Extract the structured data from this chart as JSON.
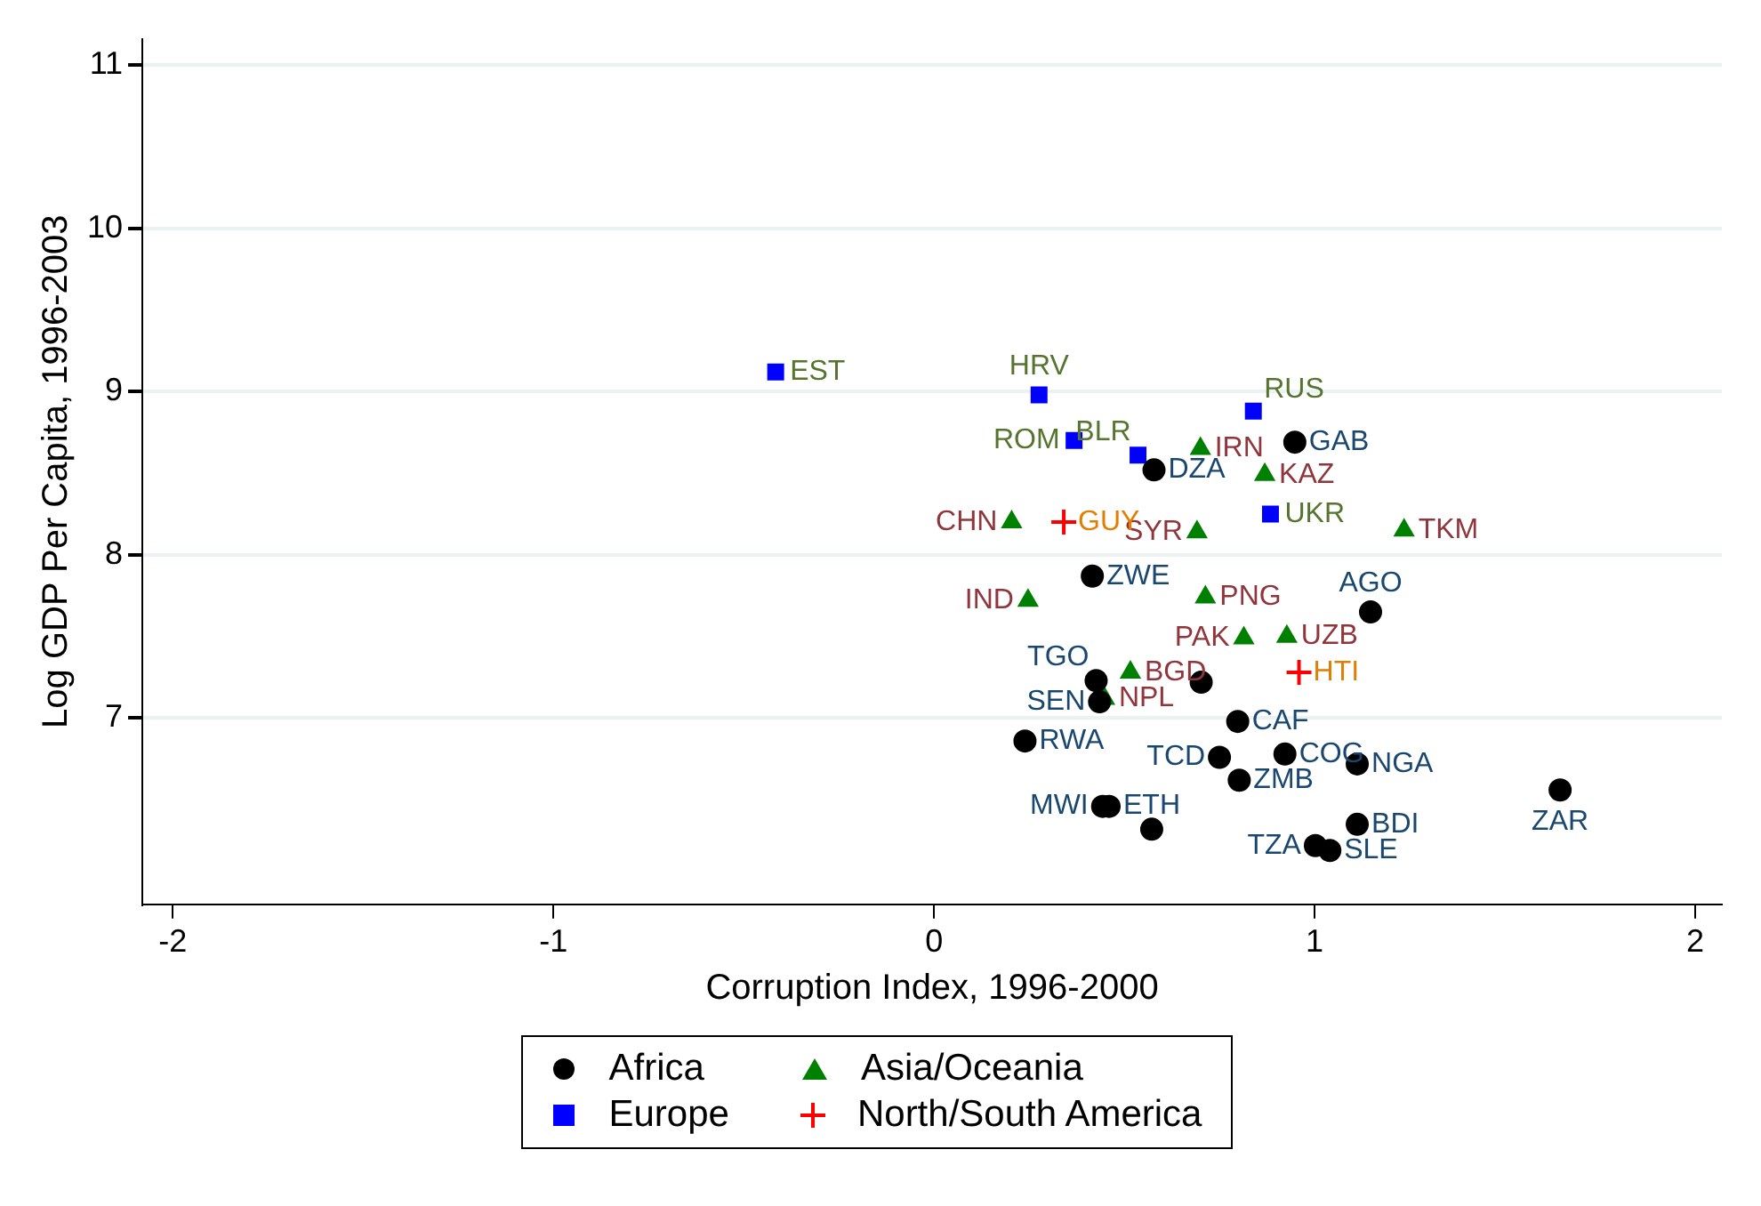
{
  "chart_data": {
    "type": "scatter",
    "xlabel": "Corruption Index, 1996-2000",
    "ylabel": "Log GDP Per Capita, 1996-2003",
    "xlim": [
      -2.08,
      2.07
    ],
    "xticks": [
      -2,
      -1,
      0,
      1,
      2
    ],
    "ylim": [
      5.86,
      11.16
    ],
    "yticks": [
      7,
      8,
      9,
      10,
      11
    ],
    "grid": "y",
    "legend": "bottom",
    "series": [
      {
        "name": "Africa",
        "color": "#000000",
        "marker": "circle",
        "x": [
          0.948,
          0.578,
          0.416,
          1.147,
          0.426,
          0.702,
          0.435,
          0.239,
          0.798,
          0.75,
          0.922,
          1.112,
          0.802,
          0.443,
          0.46,
          0.572,
          1.112,
          1.002,
          1.04,
          1.645
        ],
        "values": [
          8.69,
          8.52,
          7.87,
          7.65,
          7.23,
          7.22,
          7.1,
          6.86,
          6.98,
          6.76,
          6.78,
          6.72,
          6.62,
          6.46,
          6.46,
          6.32,
          6.35,
          6.22,
          6.19,
          6.56
        ],
        "value_labels": [
          "GAB",
          "DZA",
          "ZWE",
          "AGO",
          "TGO",
          null,
          "SEN",
          "RWA",
          "CAF",
          "TCD",
          "COG",
          "NGA",
          "ZMB",
          "MWI",
          "ETH",
          null,
          "BDI",
          "TZA",
          "SLE",
          "ZAR"
        ]
      },
      {
        "name": "Asia/Oceania",
        "color": "#008000",
        "marker": "triangle",
        "x": [
          0.7,
          0.869,
          0.204,
          0.691,
          1.235,
          0.247,
          0.713,
          0.814,
          0.927,
          0.516,
          0.448
        ],
        "values": [
          8.65,
          8.49,
          8.2,
          8.14,
          8.15,
          7.72,
          7.74,
          7.49,
          7.5,
          7.28,
          7.12
        ],
        "value_labels": [
          "IRN",
          "KAZ",
          "CHN",
          "SYR",
          "TKM",
          "IND",
          "PNG",
          "PAK",
          "UZB",
          "BGD",
          "NPL"
        ]
      },
      {
        "name": "Europe",
        "color": "#0000ff",
        "marker": "square",
        "x": [
          -0.416,
          0.276,
          0.839,
          0.368,
          0.536,
          0.884
        ],
        "values": [
          9.12,
          8.98,
          8.88,
          8.7,
          8.61,
          8.25
        ],
        "value_labels": [
          "EST",
          "HRV",
          "RUS",
          "ROM",
          "BLR",
          "UKR"
        ]
      },
      {
        "name": "North/South America",
        "color": "#ff0000",
        "marker": "cross",
        "x": [
          0.341,
          0.959
        ],
        "values": [
          8.2,
          7.28
        ],
        "value_labels": [
          "GUY",
          "HTI"
        ]
      }
    ]
  }
}
